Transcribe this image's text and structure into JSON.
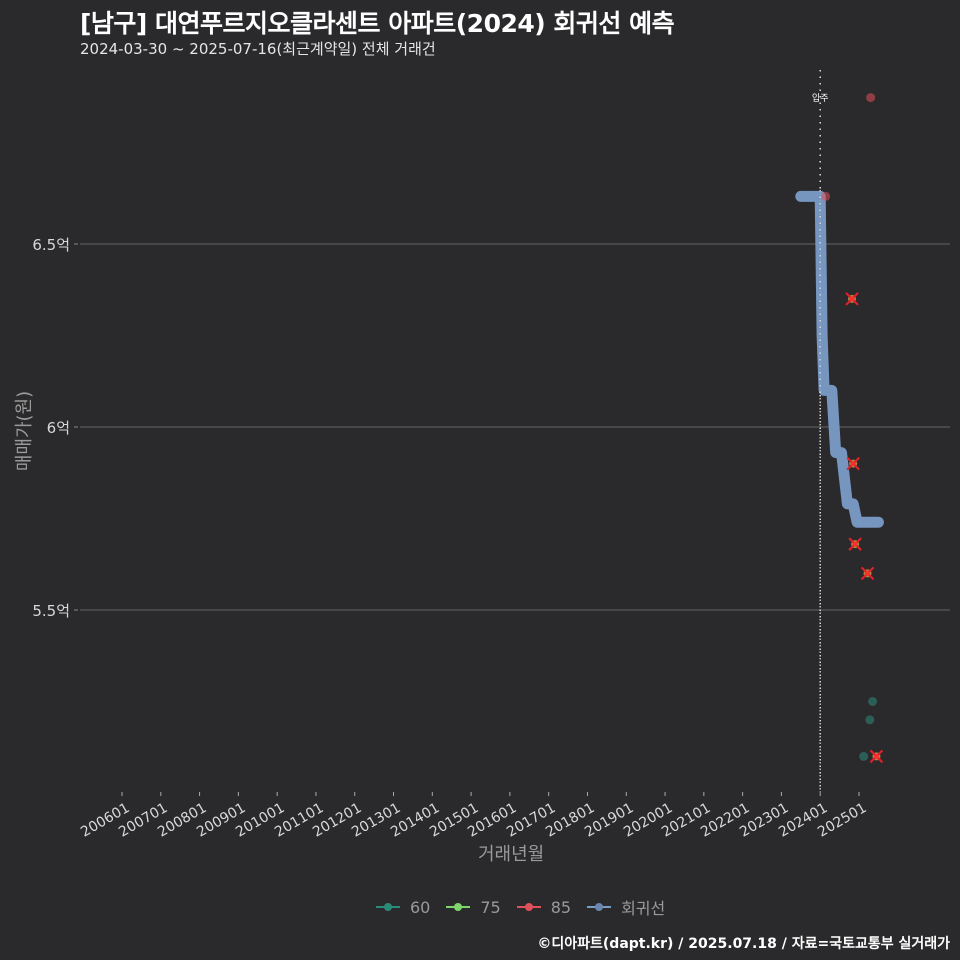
{
  "title": "[남구] 대연푸르지오클라센트 아파트(2024) 회귀선 예측",
  "subtitle": "2024-03-30 ~ 2025-07-16(최근계약일) 전체 거래건",
  "footer": "©디아파트(dapt.kr) / 2025.07.18 / 자료=국토교통부 실거래가",
  "colors": {
    "background": "#2a292b",
    "grid": "#5a5a5a",
    "series_60": "#2a8a7a",
    "series_75": "#7fd66a",
    "series_85": "#e0505a",
    "regression": "#7a9cc8",
    "outlier_x": "#e0202a"
  },
  "chart_data": {
    "type": "scatter",
    "title": "[남구] 대연푸르지오클라센트 아파트(2024) 회귀선 예측",
    "subtitle": "2024-03-30 ~ 2025-07-16(최근계약일) 전체 거래건",
    "xlabel": "거래년월",
    "ylabel": "매매가(원)",
    "x_tick_labels": [
      "200601",
      "200701",
      "200801",
      "200901",
      "201001",
      "201101",
      "201201",
      "201301",
      "201401",
      "201501",
      "201601",
      "201701",
      "201801",
      "201901",
      "202001",
      "202101",
      "202201",
      "202301",
      "202401",
      "202501"
    ],
    "y_tick_labels": [
      "5.5억",
      "6억",
      "6.5억"
    ],
    "y_tick_values": [
      5.5,
      6.0,
      6.5
    ],
    "ylim": [
      5.0,
      7.0
    ],
    "grid": "horizontal",
    "legend_position": "bottom",
    "legend": [
      "60",
      "75",
      "85",
      "회귀선"
    ],
    "annotation": {
      "label": "입주",
      "x": "202401",
      "style": "dotted vertical line"
    },
    "series": [
      {
        "name": "60",
        "points": [
          {
            "x": 2025.35,
            "y": 5.25
          },
          {
            "x": 2025.28,
            "y": 5.2
          },
          {
            "x": 2025.12,
            "y": 5.1
          }
        ]
      },
      {
        "name": "75",
        "points": []
      },
      {
        "name": "85",
        "points": [
          {
            "x": 2025.3,
            "y": 6.9
          },
          {
            "x": 2024.14,
            "y": 6.63
          },
          {
            "x": 2024.82,
            "y": 6.35,
            "outlier": true
          },
          {
            "x": 2024.85,
            "y": 5.9,
            "outlier": true
          },
          {
            "x": 2024.9,
            "y": 5.68,
            "outlier": true
          },
          {
            "x": 2025.22,
            "y": 5.6,
            "outlier": true
          },
          {
            "x": 2025.45,
            "y": 5.1,
            "outlier": true
          }
        ]
      },
      {
        "name": "회귀선",
        "type": "line",
        "points": [
          {
            "x": 2023.5,
            "y": 6.63
          },
          {
            "x": 2024.0,
            "y": 6.63
          },
          {
            "x": 2024.05,
            "y": 6.25
          },
          {
            "x": 2024.1,
            "y": 6.1
          },
          {
            "x": 2024.3,
            "y": 6.1
          },
          {
            "x": 2024.4,
            "y": 5.93
          },
          {
            "x": 2024.55,
            "y": 5.93
          },
          {
            "x": 2024.7,
            "y": 5.79
          },
          {
            "x": 2024.85,
            "y": 5.79
          },
          {
            "x": 2024.95,
            "y": 5.74
          },
          {
            "x": 2025.5,
            "y": 5.74
          }
        ]
      }
    ]
  }
}
